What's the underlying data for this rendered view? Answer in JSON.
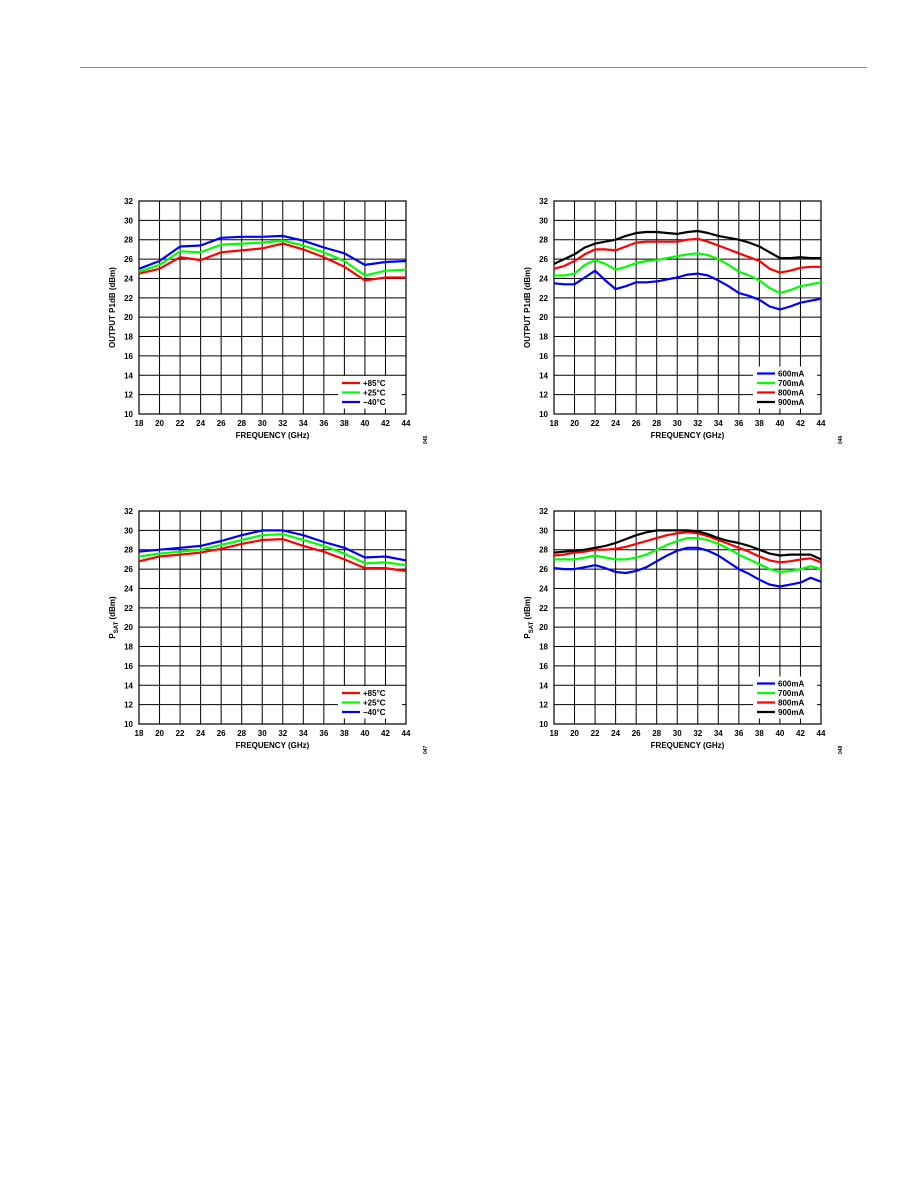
{
  "chart_data": [
    {
      "type": "line",
      "xlabel": "FREQUENCY (GHz)",
      "ylabel": "OUTPUT P1dB (dBm)",
      "ylabel_sub": "",
      "xlim": [
        18,
        44
      ],
      "ylim": [
        10,
        32
      ],
      "xticks": [
        18,
        20,
        22,
        24,
        26,
        28,
        30,
        32,
        34,
        36,
        38,
        40,
        42,
        44
      ],
      "yticks": [
        10,
        12,
        14,
        16,
        18,
        20,
        22,
        24,
        26,
        28,
        30,
        32
      ],
      "grid": true,
      "legend_position": "bottom-right",
      "figure_code": "045",
      "x": [
        18,
        20,
        22,
        24,
        26,
        28,
        30,
        32,
        34,
        36,
        38,
        40,
        42,
        44
      ],
      "series": [
        {
          "name": "+85°C",
          "color": "#ff0000",
          "values": [
            24.5,
            25.0,
            26.2,
            25.9,
            26.7,
            26.9,
            27.1,
            27.6,
            27.0,
            26.2,
            25.2,
            23.8,
            24.1,
            24.1
          ]
        },
        {
          "name": "+25°C",
          "color": "#00ff00",
          "values": [
            24.7,
            25.4,
            26.8,
            26.7,
            27.5,
            27.6,
            27.7,
            27.9,
            27.4,
            26.7,
            25.8,
            24.3,
            24.8,
            24.9
          ]
        },
        {
          "name": "−40°C",
          "color": "#0000ff",
          "values": [
            25.0,
            25.8,
            27.3,
            27.4,
            28.2,
            28.3,
            28.3,
            28.4,
            27.9,
            27.2,
            26.6,
            25.4,
            25.7,
            25.8
          ]
        }
      ]
    },
    {
      "type": "line",
      "xlabel": "FREQUENCY (GHz)",
      "ylabel": "OUTPUT P1dB (dBm)",
      "ylabel_sub": "",
      "xlim": [
        18,
        44
      ],
      "ylim": [
        10,
        32
      ],
      "xticks": [
        18,
        20,
        22,
        24,
        26,
        28,
        30,
        32,
        34,
        36,
        38,
        40,
        42,
        44
      ],
      "yticks": [
        10,
        12,
        14,
        16,
        18,
        20,
        22,
        24,
        26,
        28,
        30,
        32
      ],
      "grid": true,
      "legend_position": "bottom-right",
      "figure_code": "046",
      "x": [
        18,
        19,
        20,
        21,
        22,
        23,
        24,
        25,
        26,
        27,
        28,
        29,
        30,
        31,
        32,
        33,
        34,
        35,
        36,
        37,
        38,
        39,
        40,
        41,
        42,
        43,
        44
      ],
      "series": [
        {
          "name": "600mA",
          "color": "#0000ff",
          "values": [
            23.5,
            23.4,
            23.4,
            24.1,
            24.8,
            23.8,
            22.9,
            23.2,
            23.6,
            23.6,
            23.7,
            23.9,
            24.1,
            24.4,
            24.5,
            24.3,
            23.8,
            23.2,
            22.5,
            22.2,
            21.8,
            21.1,
            20.8,
            21.1,
            21.5,
            21.7,
            21.9
          ]
        },
        {
          "name": "700mA",
          "color": "#00ff00",
          "values": [
            24.3,
            24.3,
            24.5,
            25.4,
            25.9,
            25.5,
            24.9,
            25.2,
            25.6,
            25.8,
            25.9,
            26.1,
            26.3,
            26.5,
            26.6,
            26.4,
            26.0,
            25.4,
            24.7,
            24.3,
            23.8,
            23.0,
            22.5,
            22.8,
            23.2,
            23.4,
            23.6
          ]
        },
        {
          "name": "800mA",
          "color": "#ff0000",
          "values": [
            25.0,
            25.3,
            25.8,
            26.5,
            27.0,
            27.0,
            26.9,
            27.3,
            27.7,
            27.8,
            27.8,
            27.8,
            27.8,
            28.0,
            28.1,
            27.8,
            27.4,
            27.0,
            26.6,
            26.2,
            25.8,
            25.0,
            24.6,
            24.8,
            25.1,
            25.2,
            25.2
          ]
        },
        {
          "name": "900mA",
          "color": "#000000",
          "values": [
            25.5,
            26.0,
            26.5,
            27.2,
            27.6,
            27.8,
            28.0,
            28.4,
            28.7,
            28.8,
            28.8,
            28.7,
            28.6,
            28.8,
            28.9,
            28.7,
            28.4,
            28.2,
            28.0,
            27.7,
            27.3,
            26.7,
            26.1,
            26.1,
            26.2,
            26.1,
            26.1
          ]
        }
      ]
    },
    {
      "type": "line",
      "xlabel": "FREQUENCY (GHz)",
      "ylabel": "P",
      "ylabel_sub": "SAT",
      "ylabel_unit": " (dBm)",
      "xlim": [
        18,
        44
      ],
      "ylim": [
        10,
        32
      ],
      "xticks": [
        18,
        20,
        22,
        24,
        26,
        28,
        30,
        32,
        34,
        36,
        38,
        40,
        42,
        44
      ],
      "yticks": [
        10,
        12,
        14,
        16,
        18,
        20,
        22,
        24,
        26,
        28,
        30,
        32
      ],
      "grid": true,
      "legend_position": "bottom-right",
      "figure_code": "047",
      "x": [
        18,
        20,
        22,
        24,
        26,
        28,
        30,
        32,
        34,
        36,
        38,
        40,
        42,
        44
      ],
      "series": [
        {
          "name": "+85°C",
          "color": "#ff0000",
          "values": [
            26.8,
            27.3,
            27.5,
            27.7,
            28.1,
            28.6,
            29.0,
            29.1,
            28.4,
            27.8,
            27.0,
            26.1,
            26.1,
            25.8
          ]
        },
        {
          "name": "+25°C",
          "color": "#00ff00",
          "values": [
            27.3,
            27.6,
            27.8,
            28.0,
            28.5,
            29.0,
            29.5,
            29.6,
            29.0,
            28.4,
            27.6,
            26.6,
            26.7,
            26.4
          ]
        },
        {
          "name": "−40°C",
          "color": "#0000ff",
          "values": [
            27.8,
            28.0,
            28.2,
            28.4,
            28.9,
            29.5,
            30.0,
            30.0,
            29.5,
            28.8,
            28.2,
            27.2,
            27.3,
            26.9
          ]
        }
      ]
    },
    {
      "type": "line",
      "xlabel": "FREQUENCY (GHz)",
      "ylabel": "P",
      "ylabel_sub": "SAT",
      "ylabel_unit": " (dBm)",
      "xlim": [
        18,
        44
      ],
      "ylim": [
        10,
        32
      ],
      "xticks": [
        18,
        20,
        22,
        24,
        26,
        28,
        30,
        32,
        34,
        36,
        38,
        40,
        42,
        44
      ],
      "yticks": [
        10,
        12,
        14,
        16,
        18,
        20,
        22,
        24,
        26,
        28,
        30,
        32
      ],
      "grid": true,
      "legend_position": "bottom-right",
      "figure_code": "048",
      "x": [
        18,
        19,
        20,
        21,
        22,
        23,
        24,
        25,
        26,
        27,
        28,
        29,
        30,
        31,
        32,
        33,
        34,
        35,
        36,
        37,
        38,
        39,
        40,
        41,
        42,
        43,
        44
      ],
      "series": [
        {
          "name": "600mA",
          "color": "#0000ff",
          "values": [
            26.1,
            26.0,
            26.0,
            26.2,
            26.4,
            26.1,
            25.7,
            25.6,
            25.8,
            26.2,
            26.8,
            27.4,
            27.9,
            28.2,
            28.2,
            27.9,
            27.4,
            26.7,
            26.0,
            25.5,
            24.9,
            24.4,
            24.2,
            24.4,
            24.6,
            25.1,
            24.7
          ]
        },
        {
          "name": "700mA",
          "color": "#00ff00",
          "values": [
            27.0,
            27.0,
            27.0,
            27.2,
            27.4,
            27.2,
            27.0,
            27.0,
            27.2,
            27.5,
            28.0,
            28.5,
            28.9,
            29.2,
            29.2,
            29.0,
            28.6,
            28.1,
            27.5,
            27.0,
            26.5,
            26.0,
            25.7,
            25.8,
            26.0,
            26.3,
            26.0
          ]
        },
        {
          "name": "800mA",
          "color": "#ff0000",
          "values": [
            27.4,
            27.5,
            27.7,
            27.8,
            28.0,
            28.0,
            28.1,
            28.3,
            28.6,
            28.9,
            29.2,
            29.5,
            29.7,
            29.8,
            29.7,
            29.4,
            29.0,
            28.6,
            28.2,
            27.8,
            27.3,
            26.9,
            26.7,
            26.8,
            27.0,
            27.1,
            26.7
          ]
        },
        {
          "name": "900mA",
          "color": "#000000",
          "values": [
            27.7,
            27.8,
            27.9,
            28.0,
            28.2,
            28.4,
            28.7,
            29.1,
            29.5,
            29.8,
            30.0,
            30.0,
            30.0,
            30.0,
            29.9,
            29.6,
            29.2,
            28.9,
            28.7,
            28.4,
            28.0,
            27.6,
            27.4,
            27.5,
            27.5,
            27.5,
            27.0
          ]
        }
      ]
    }
  ]
}
